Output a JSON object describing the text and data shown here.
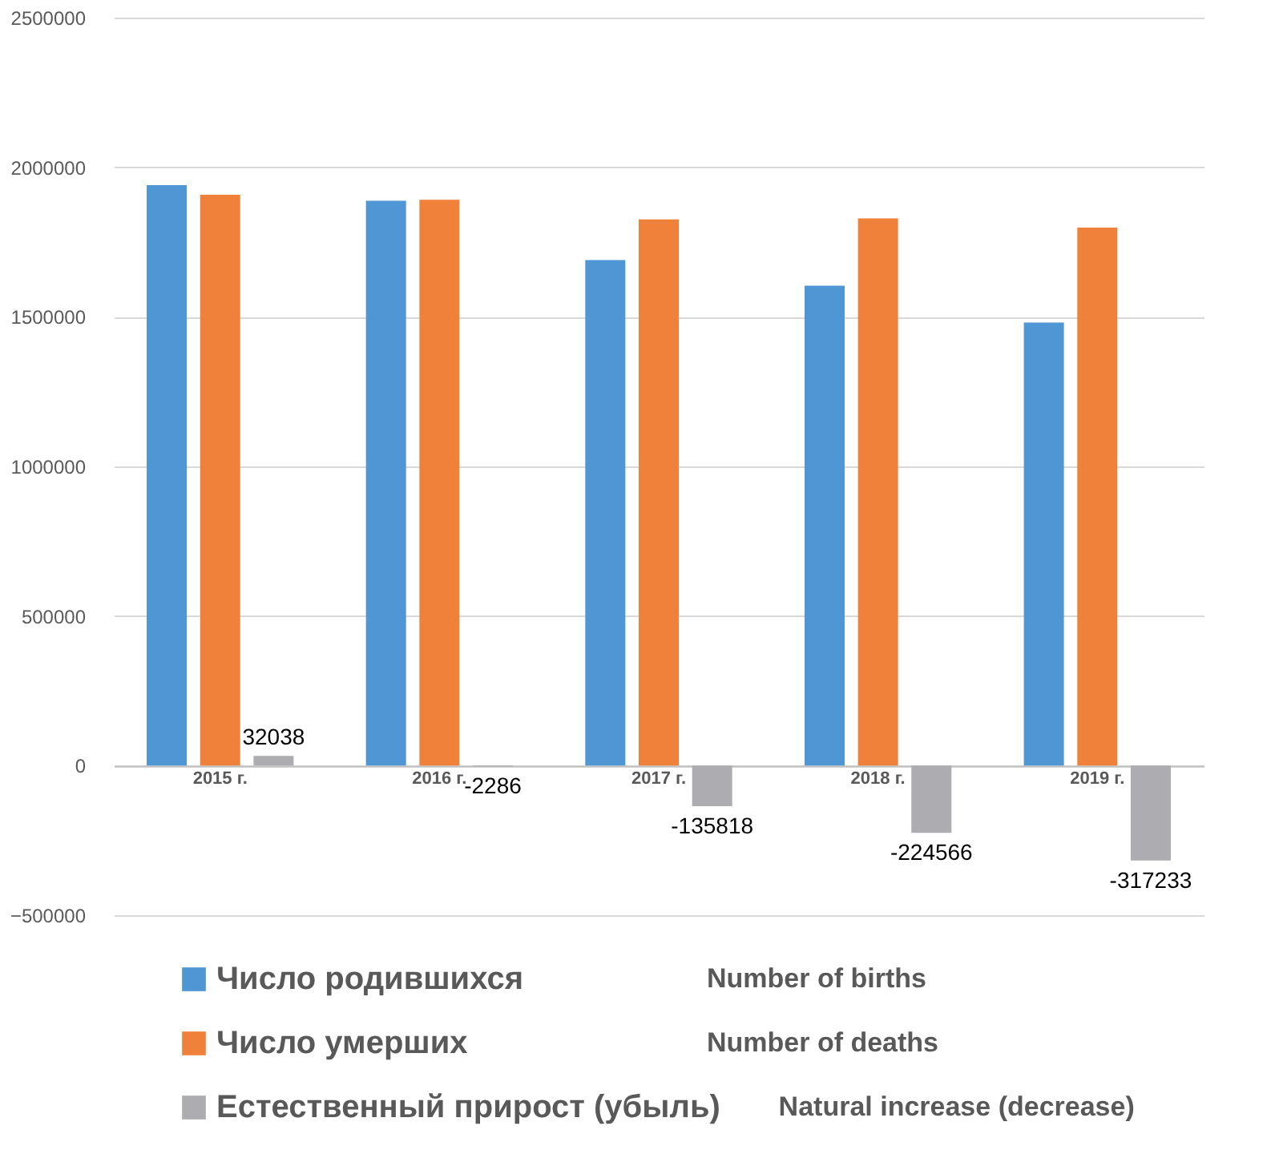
{
  "chart_data": {
    "type": "bar",
    "categories": [
      "2015 г.",
      "2016 г.",
      "2017 г.",
      "2018 г.",
      "2019 г."
    ],
    "series": [
      {
        "name": "Число родившихся",
        "color": "#4f96d4",
        "values": [
          1940000,
          1888000,
          1690000,
          1604000,
          1481000
        ]
      },
      {
        "name": "Число умерших",
        "color": "#f0813a",
        "values": [
          1908000,
          1891000,
          1826000,
          1829000,
          1798000
        ]
      },
      {
        "name": "Естественный прирост (убыль)",
        "color": "#adadb1",
        "values": [
          32038,
          -2286,
          -135818,
          -224566,
          -317233
        ],
        "value_labels": [
          "32038",
          "-2286",
          "-135818",
          "-224566",
          "-317233"
        ]
      }
    ],
    "annotations": [
      "Number of births",
      "Number of deaths",
      "Natural increase (decrease)"
    ],
    "ylim": [
      -500000,
      2500000
    ],
    "yticks": [
      -500000,
      0,
      500000,
      1000000,
      1500000,
      2000000,
      2500000
    ],
    "grid": "y",
    "legend": "bottom"
  }
}
